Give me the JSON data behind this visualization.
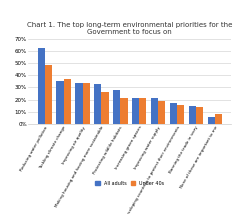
{
  "title": "Chart 1. The top long-term environmental priorities for the\nGovernment to focus on",
  "categories": [
    "Reducing water pollution",
    "Tackling climate change",
    "Improving air quality",
    "Making housing and having more sustainable",
    "Protecting wildlife habitats",
    "Increasing green spaces",
    "Improving water supply",
    "Helping developing countries to protect their environments",
    "Banning the trade in ivory",
    "None of these are important to me"
  ],
  "all_adults": [
    62,
    35,
    34,
    33,
    28,
    21,
    21,
    17,
    15,
    6
  ],
  "under_40s": [
    48,
    37,
    34,
    26,
    21,
    21,
    19,
    16,
    14,
    8
  ],
  "color_all": "#4472c4",
  "color_under": "#ed7d31",
  "ylim": [
    0,
    70
  ],
  "yticks": [
    0,
    10,
    20,
    30,
    40,
    50,
    60,
    70
  ],
  "ytick_labels": [
    "0%",
    "10%",
    "20%",
    "30%",
    "40%",
    "50%",
    "60%",
    "70%"
  ],
  "legend_all": "All adults",
  "legend_under": "Under 40s",
  "background": "#ffffff"
}
